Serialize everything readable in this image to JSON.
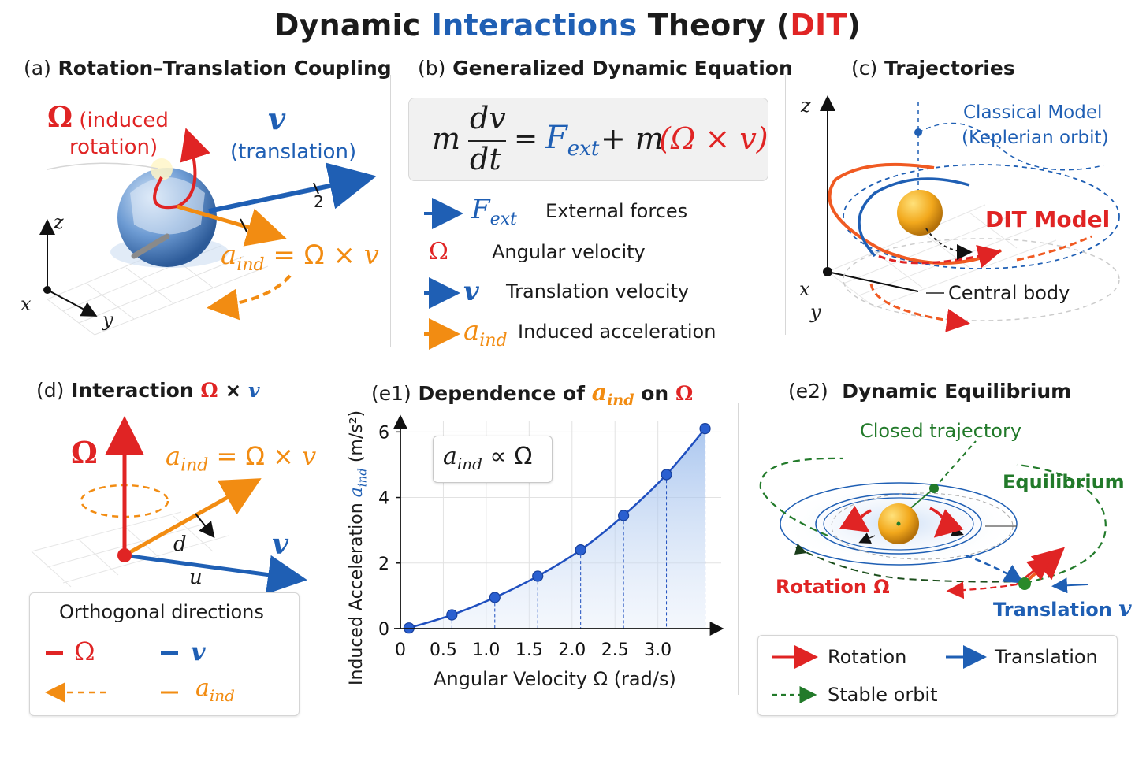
{
  "title": {
    "part1": "Dynamic ",
    "part2": "Interactions",
    "part3": " Theory (",
    "part4": "DIT",
    "part5": ")"
  },
  "colors": {
    "red": "#e02424",
    "blue": "#1f5fb4",
    "orange": "#f28c12",
    "green": "#227a2a"
  },
  "panel_a": {
    "letter": "(a)",
    "title": "Rotation–Translation Coupling",
    "omega_symbol": "Ω",
    "omega_text1": " (induced",
    "omega_text2": "rotation)",
    "v_symbol": "v",
    "v_text": "(translation)",
    "mark_2": "2",
    "aind_main": "a",
    "aind_sub": "ind",
    "aind_rhs": " = Ω × ",
    "aind_v": "v",
    "axis_z": "z",
    "axis_x": "x",
    "axis_y": "y"
  },
  "panel_b": {
    "letter": "(b)",
    "title": "Generalized Dynamic Equation",
    "eq_m": "m",
    "eq_dv": "dv",
    "eq_dt": "dt",
    "eq_eq": "=",
    "eq_F": "F",
    "eq_ext": "ext",
    "eq_plus": "+ m",
    "eq_cross": "(Ω × v)",
    "legend": [
      {
        "sym": "F",
        "sub": "ext",
        "text": "External forces",
        "color": "blue",
        "icon": "arrow-blue-icon"
      },
      {
        "sym": "Ω",
        "sub": "",
        "text": "Angular velocity",
        "color": "red",
        "icon": "none"
      },
      {
        "sym": "v",
        "sub": "",
        "text": "Translation velocity",
        "color": "blue",
        "icon": "arrow-blue-icon"
      },
      {
        "sym": "a",
        "sub": "ind",
        "text": "Induced acceleration",
        "color": "orange",
        "icon": "arrow-orange-icon"
      }
    ]
  },
  "panel_c": {
    "letter": "(c)",
    "title": "Trajectories",
    "classical1": "Classical Model",
    "classical2": "(Keplerian orbit)",
    "dit": "DIT Model",
    "central": "Central body",
    "axis_z": "z",
    "axis_x": "x",
    "axis_y": "y"
  },
  "panel_d": {
    "letter": "(d)",
    "title": "Interaction",
    "title_omega": "Ω",
    "title_x": " × ",
    "title_v": "v",
    "omega": "Ω",
    "aind_a": "a",
    "aind_sub": "ind",
    "aind_rhs": " = Ω × ",
    "aind_v": "v",
    "d": "d",
    "u": "u",
    "v": "v",
    "legend_title": "Orthogonal directions",
    "leg_omega": "Ω",
    "leg_v": "v",
    "leg_a": "a",
    "leg_a_sub": "ind"
  },
  "panel_e1": {
    "letter": "(e1)",
    "title": "Dependence of ",
    "title_a": "a",
    "title_sub": "ind",
    "title_on": " on ",
    "title_omega": "Ω",
    "rel_a": "a",
    "rel_sub": "ind",
    "rel_rhs": " ∝ Ω"
  },
  "chart_data": {
    "type": "line",
    "title": "Dependence of a_ind on Ω",
    "xlabel": "Angular Velocity Ω (rad/s)",
    "ylabel_main": "Induced Acceleration ",
    "ylabel_a": "a",
    "ylabel_sub": "ind",
    "ylabel_unit": " (m/s²)",
    "x_ticks": [
      "0",
      "0.5",
      "1.0",
      "1.5",
      "2.0",
      "2.5",
      "3.0"
    ],
    "y_ticks": [
      "0",
      "2",
      "4",
      "6"
    ],
    "xlim": [
      0,
      3.6
    ],
    "ylim": [
      0,
      6.2
    ],
    "grid": true,
    "series": [
      {
        "x": [
          0.1,
          0.6,
          1.1,
          1.6,
          2.1,
          2.6,
          3.1,
          3.55
        ],
        "y": [
          0.02,
          0.42,
          0.95,
          1.6,
          2.4,
          3.45,
          4.7,
          6.1
        ]
      }
    ]
  },
  "panel_e2": {
    "letter": "(e2)",
    "title": "Dynamic Equilibrium",
    "closed": "Closed trajectory",
    "equilibrium": "Equilibrium",
    "rotation": "Rotation Ω",
    "translation": "Translation ",
    "translation_v": "v",
    "leg_rotation": "Rotation",
    "leg_translation": "Translation",
    "leg_stable": "Stable orbit"
  }
}
